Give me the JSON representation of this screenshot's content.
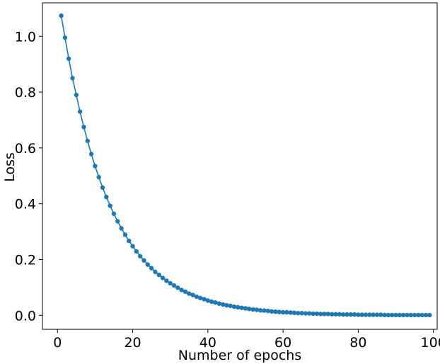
{
  "chart_data": {
    "type": "line",
    "title": "",
    "xlabel": "Number of epochs",
    "ylabel": "Loss",
    "xlim": [
      -4,
      101
    ],
    "ylim": [
      -0.05,
      1.12
    ],
    "xticks": [
      0,
      20,
      40,
      60,
      80,
      100
    ],
    "yticks": [
      0.0,
      0.2,
      0.4,
      0.6,
      0.8,
      1.0
    ],
    "xtick_labels": [
      "0",
      "20",
      "40",
      "60",
      "80",
      "100"
    ],
    "ytick_labels": [
      "0.0",
      "0.2",
      "0.4",
      "0.6",
      "0.8",
      "1.0"
    ],
    "grid": false,
    "legend": "none",
    "series": [
      {
        "color": "#1f77b4",
        "marker": "circle",
        "x": [
          1,
          2,
          3,
          4,
          5,
          6,
          7,
          8,
          9,
          10,
          11,
          12,
          13,
          14,
          15,
          16,
          17,
          18,
          19,
          20,
          21,
          22,
          23,
          24,
          25,
          26,
          27,
          28,
          29,
          30,
          31,
          32,
          33,
          34,
          35,
          36,
          37,
          38,
          39,
          40,
          41,
          42,
          43,
          44,
          45,
          46,
          47,
          48,
          49,
          50,
          51,
          52,
          53,
          54,
          55,
          56,
          57,
          58,
          59,
          60,
          61,
          62,
          63,
          64,
          65,
          66,
          67,
          68,
          69,
          70,
          71,
          72,
          73,
          74,
          75,
          76,
          77,
          78,
          79,
          80,
          81,
          82,
          83,
          84,
          85,
          86,
          87,
          88,
          89,
          90,
          91,
          92,
          93,
          94,
          95,
          96,
          97,
          98,
          99
        ],
        "values": [
          1.074,
          0.995,
          0.92,
          0.85,
          0.79,
          0.73,
          0.675,
          0.625,
          0.578,
          0.535,
          0.495,
          0.458,
          0.424,
          0.393,
          0.364,
          0.337,
          0.312,
          0.289,
          0.267,
          0.248,
          0.229,
          0.212,
          0.197,
          0.182,
          0.169,
          0.156,
          0.145,
          0.134,
          0.124,
          0.115,
          0.107,
          0.099,
          0.091,
          0.085,
          0.078,
          0.073,
          0.067,
          0.062,
          0.058,
          0.053,
          0.049,
          0.046,
          0.042,
          0.039,
          0.036,
          0.034,
          0.031,
          0.029,
          0.027,
          0.025,
          0.023,
          0.021,
          0.02,
          0.018,
          0.017,
          0.016,
          0.014,
          0.013,
          0.012,
          0.011,
          0.011,
          0.01,
          0.009,
          0.008,
          0.008,
          0.007,
          0.007,
          0.006,
          0.006,
          0.005,
          0.005,
          0.005,
          0.004,
          0.004,
          0.004,
          0.003,
          0.003,
          0.003,
          0.003,
          0.002,
          0.002,
          0.002,
          0.002,
          0.002,
          0.002,
          0.002,
          0.001,
          0.001,
          0.001,
          0.001,
          0.001,
          0.001,
          0.001,
          0.001,
          0.001,
          0.001,
          0.001,
          0.001,
          0.001
        ]
      }
    ]
  }
}
